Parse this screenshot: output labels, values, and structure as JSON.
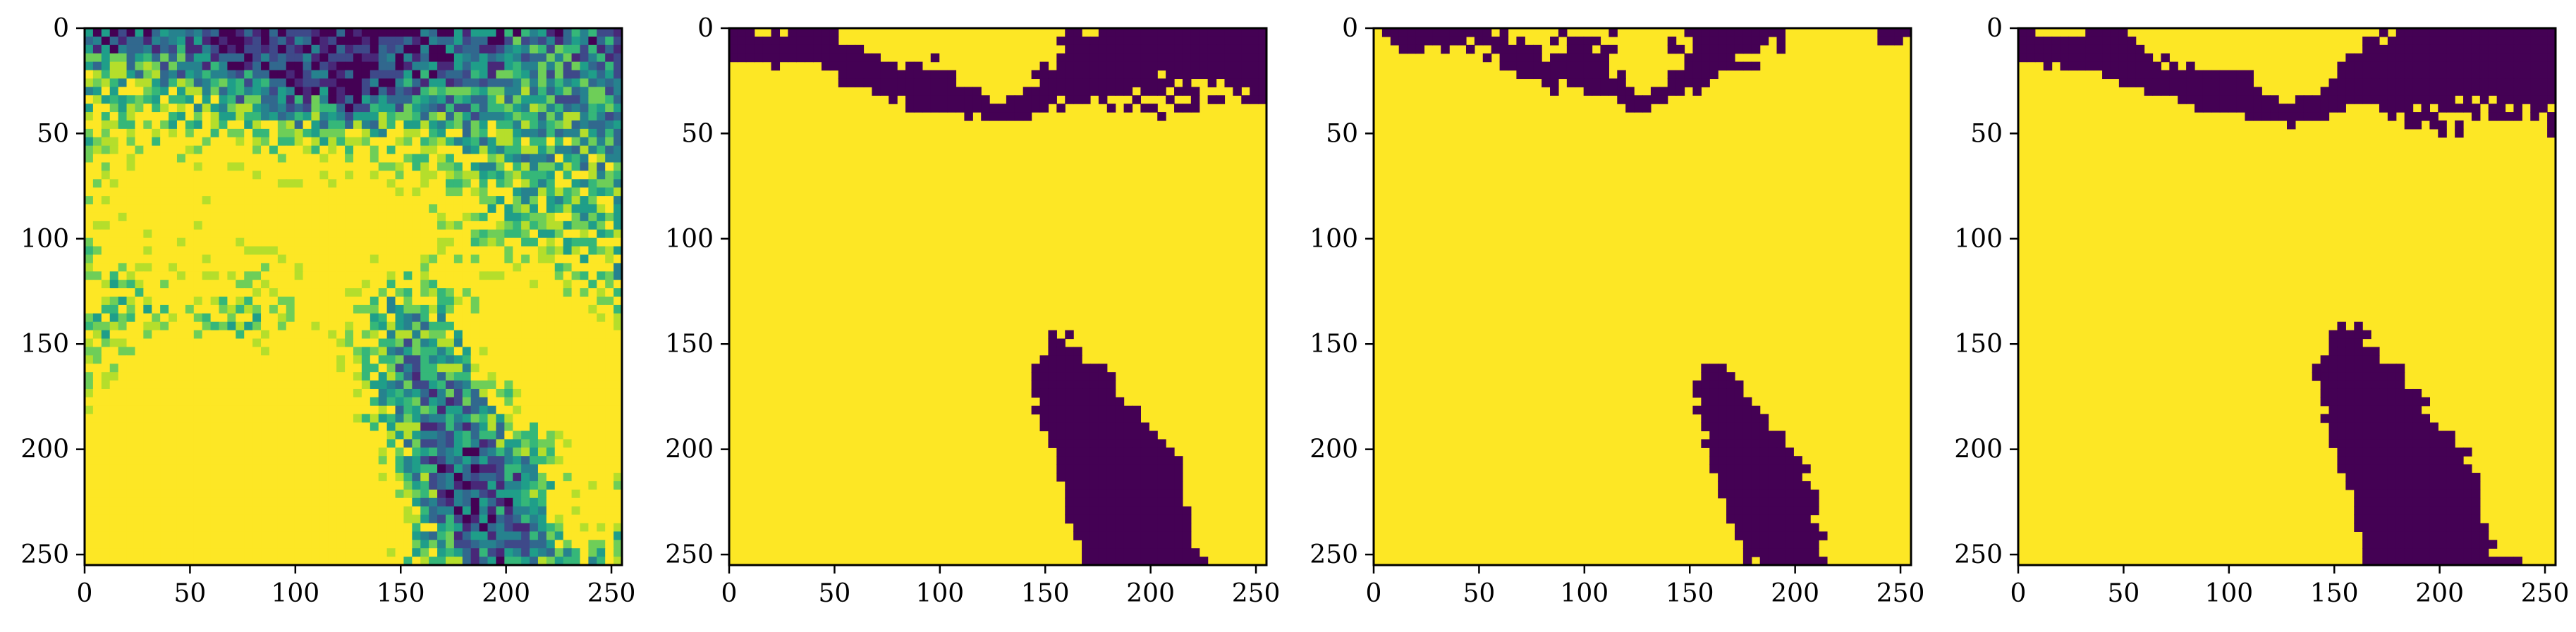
{
  "figure": {
    "panels": [
      {
        "name": "panel-1-noisy-image",
        "style": "viewridis-noise",
        "seed": 11
      },
      {
        "name": "panel-2-segmentation",
        "style": "binary",
        "seed": 23
      },
      {
        "name": "panel-3-segmentation",
        "style": "binary-sparse",
        "seed": 37
      },
      {
        "name": "panel-4-segmentation",
        "style": "binary",
        "seed": 51
      }
    ]
  },
  "chart_data": [
    {
      "type": "heatmap",
      "title": "",
      "xlabel": "",
      "ylabel": "",
      "xlim": [
        0,
        255
      ],
      "ylim": [
        255,
        0
      ],
      "xticks": [
        "0",
        "50",
        "100",
        "150",
        "200",
        "250"
      ],
      "yticks": [
        "0",
        "50",
        "100",
        "150",
        "200",
        "250"
      ],
      "colormap": "viridis",
      "description_values": "continuous intensity image"
    },
    {
      "type": "heatmap",
      "xlim": [
        0,
        255
      ],
      "ylim": [
        255,
        0
      ],
      "xticks": [
        "0",
        "50",
        "100",
        "150",
        "200",
        "250"
      ],
      "yticks": [
        "0",
        "50",
        "100",
        "150",
        "200",
        "250"
      ],
      "colormap": "viridis-binary",
      "classes": [
        0,
        1
      ]
    },
    {
      "type": "heatmap",
      "xlim": [
        0,
        255
      ],
      "ylim": [
        255,
        0
      ],
      "xticks": [
        "0",
        "50",
        "100",
        "150",
        "200",
        "250"
      ],
      "yticks": [
        "0",
        "50",
        "100",
        "150",
        "200",
        "250"
      ],
      "colormap": "viridis-binary",
      "classes": [
        0,
        1
      ]
    },
    {
      "type": "heatmap",
      "xlim": [
        0,
        255
      ],
      "ylim": [
        255,
        0
      ],
      "xticks": [
        "0",
        "50",
        "100",
        "150",
        "200",
        "250"
      ],
      "yticks": [
        "0",
        "50",
        "100",
        "150",
        "200",
        "250"
      ],
      "colormap": "viridis-binary",
      "classes": [
        0,
        1
      ]
    }
  ],
  "colors": {
    "dark": "#440154",
    "yellow": "#fde725",
    "teal": "#21918c",
    "blue": "#3b528b",
    "green": "#5ec962"
  }
}
